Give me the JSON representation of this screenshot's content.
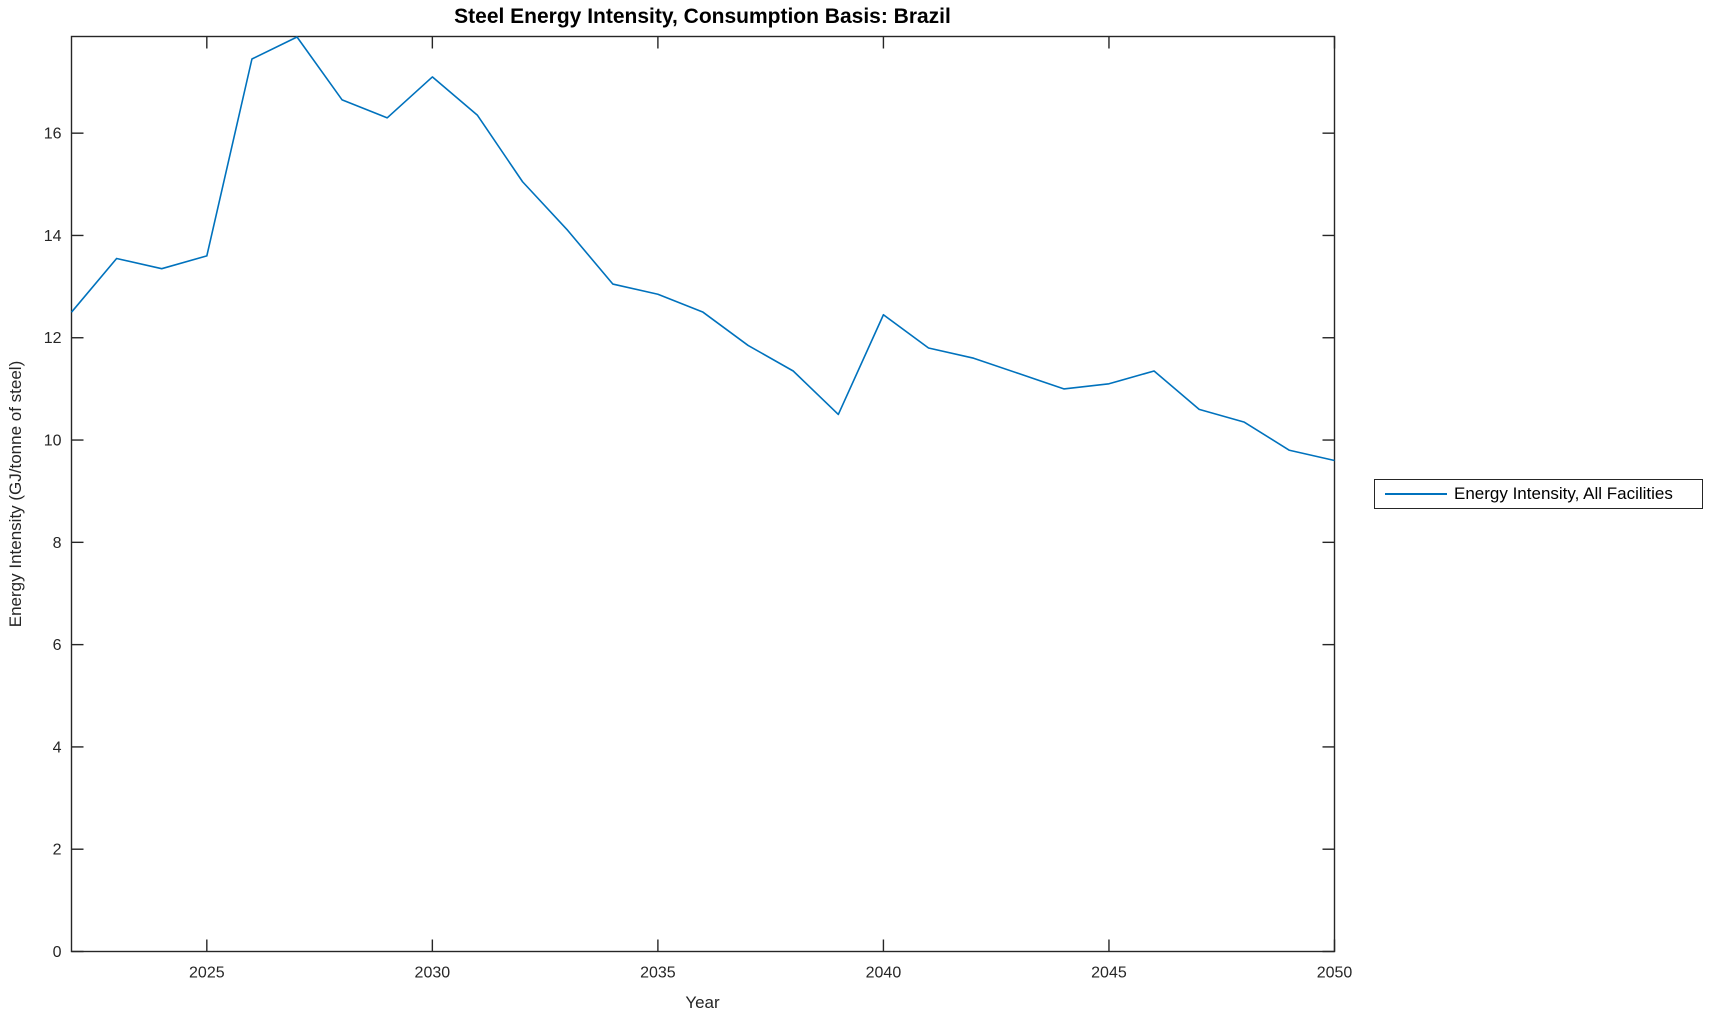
{
  "chart_data": {
    "type": "line",
    "title": "Steel Energy Intensity, Consumption Basis: Brazil",
    "xlabel": "Year",
    "ylabel": "Energy Intensity (GJ/tonne of steel)",
    "legend": {
      "position": "right-outside",
      "entries": [
        "Energy Intensity, All Facilities"
      ]
    },
    "grid": false,
    "line_color": "#0072BD",
    "axis_color": "#262626",
    "title_color": "#000000",
    "xlim": [
      2022,
      2050
    ],
    "ylim": [
      0,
      17.89
    ],
    "x_ticks": [
      2025,
      2030,
      2035,
      2040,
      2045,
      2050
    ],
    "y_ticks": [
      0,
      2,
      4,
      6,
      8,
      10,
      12,
      14,
      16
    ],
    "x": [
      2022,
      2023,
      2024,
      2025,
      2026,
      2027,
      2028,
      2029,
      2030,
      2031,
      2032,
      2033,
      2034,
      2035,
      2036,
      2037,
      2038,
      2039,
      2040,
      2041,
      2042,
      2043,
      2044,
      2045,
      2046,
      2047,
      2048,
      2049,
      2050
    ],
    "series": [
      {
        "name": "Energy Intensity, All Facilities",
        "values": [
          12.5,
          13.55,
          13.35,
          13.6,
          17.45,
          17.88,
          16.65,
          16.3,
          17.1,
          16.35,
          15.05,
          14.1,
          13.05,
          12.85,
          12.5,
          11.85,
          11.35,
          10.5,
          12.45,
          11.8,
          11.6,
          11.3,
          11.0,
          11.1,
          11.35,
          10.6,
          10.35,
          9.8,
          9.6
        ]
      }
    ]
  }
}
